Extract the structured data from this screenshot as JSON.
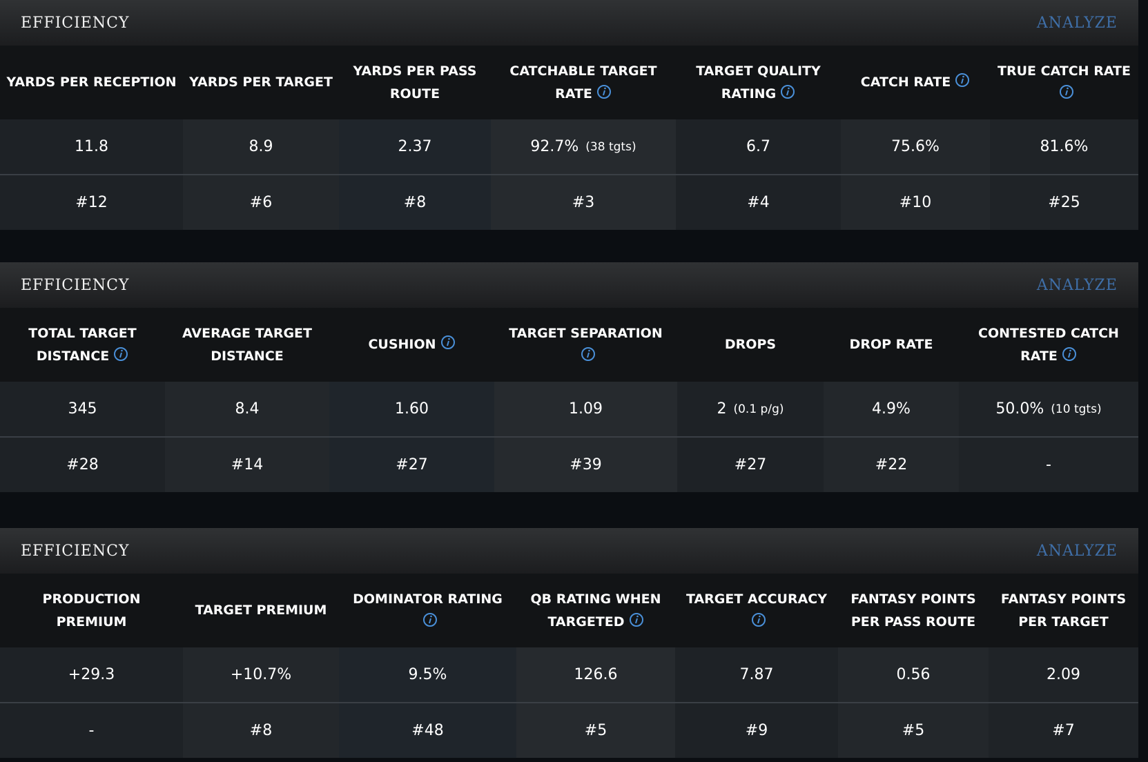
{
  "panels": [
    {
      "title": "EFFICIENCY",
      "link": "ANALYZE",
      "columns": [
        {
          "label": "YARDS PER RECEPTION",
          "info": false,
          "value": "11.8",
          "rank": "#12"
        },
        {
          "label": "YARDS PER TARGET",
          "info": false,
          "value": "8.9",
          "rank": "#6"
        },
        {
          "label": "YARDS PER PASS ROUTE",
          "info": false,
          "value": "2.37",
          "rank": "#8"
        },
        {
          "label": "CATCHABLE TARGET RATE",
          "info": true,
          "value": "92.7%",
          "sub": "(38 tgts)",
          "rank": "#3"
        },
        {
          "label": "TARGET QUALITY RATING",
          "info": true,
          "value": "6.7",
          "rank": "#4"
        },
        {
          "label": "CATCH RATE",
          "info": true,
          "value": "75.6%",
          "rank": "#10"
        },
        {
          "label": "TRUE CATCH RATE",
          "info": true,
          "value": "81.6%",
          "rank": "#25"
        }
      ]
    },
    {
      "title": "EFFICIENCY",
      "link": "ANALYZE",
      "columns": [
        {
          "label": "TOTAL TARGET DISTANCE",
          "info": true,
          "value": "345",
          "rank": "#28"
        },
        {
          "label": "AVERAGE TARGET DISTANCE",
          "info": false,
          "value": "8.4",
          "rank": "#14"
        },
        {
          "label": "CUSHION",
          "info": true,
          "value": "1.60",
          "rank": "#27"
        },
        {
          "label": "TARGET SEPARATION",
          "info": true,
          "value": "1.09",
          "rank": "#39"
        },
        {
          "label": "DROPS",
          "info": false,
          "value": "2",
          "sub": "(0.1 p/g)",
          "rank": "#27"
        },
        {
          "label": "DROP RATE",
          "info": false,
          "value": "4.9%",
          "rank": "#22"
        },
        {
          "label": "CONTESTED CATCH RATE",
          "info": true,
          "value": "50.0%",
          "sub": "(10 tgts)",
          "rank": "-"
        }
      ]
    },
    {
      "title": "EFFICIENCY",
      "link": "ANALYZE",
      "columns": [
        {
          "label": "PRODUCTION PREMIUM",
          "info": false,
          "value": "+29.3",
          "rank": "-"
        },
        {
          "label": "TARGET PREMIUM",
          "info": false,
          "value": "+10.7%",
          "rank": "#8"
        },
        {
          "label": "DOMINATOR RATING",
          "info": true,
          "value": "9.5%",
          "rank": "#48"
        },
        {
          "label": "QB RATING WHEN TARGETED",
          "info": true,
          "value": "126.6",
          "rank": "#5"
        },
        {
          "label": "TARGET ACCURACY",
          "info": true,
          "value": "7.87",
          "rank": "#9"
        },
        {
          "label": "FANTASY POINTS PER PASS ROUTE",
          "info": false,
          "value": "0.56",
          "rank": "#5"
        },
        {
          "label": "FANTASY POINTS PER TARGET",
          "info": false,
          "value": "2.09",
          "rank": "#7"
        }
      ]
    }
  ]
}
